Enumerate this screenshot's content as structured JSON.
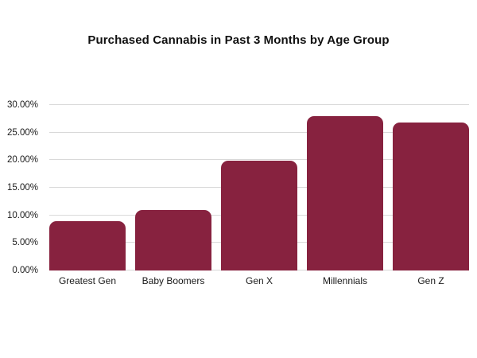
{
  "chart_data": {
    "type": "bar",
    "title": "Purchased Cannabis in Past 3 Months by Age Group",
    "categories": [
      "Greatest Gen",
      "Baby Boomers",
      "Gen X",
      "Millennials",
      "Gen Z"
    ],
    "values": [
      8.9,
      10.9,
      19.9,
      28.0,
      26.9
    ],
    "xlabel": "",
    "ylabel": "",
    "ylim": [
      0,
      30
    ],
    "ytick_values": [
      0,
      5,
      10,
      15,
      20,
      25,
      30
    ],
    "ytick_labels": [
      "0.00%",
      "5.00%",
      "10.00%",
      "15.00%",
      "20.00%",
      "25.00%",
      "30.00%"
    ],
    "grid": "horizontal",
    "legend": "none",
    "bar_color": "#87223F",
    "gridline_color": "#D9D9D9",
    "background_color": "#FFFFFF",
    "title_color": "#111111",
    "tick_color": "#1A1A1A"
  }
}
